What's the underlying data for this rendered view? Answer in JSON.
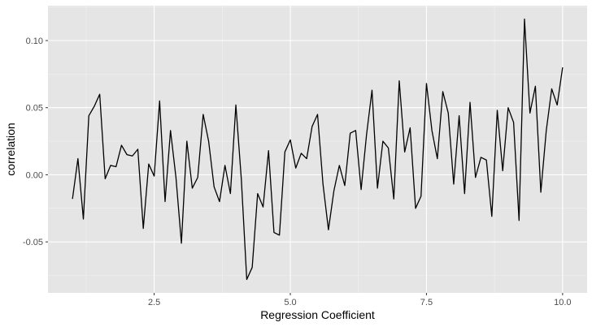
{
  "chart_data": {
    "type": "line",
    "title": "",
    "xlabel": "Regression Coefficient",
    "ylabel": "correlation",
    "xlim": [
      0.55,
      10.45
    ],
    "ylim": [
      -0.088,
      0.126
    ],
    "x_ticks": [
      2.5,
      5.0,
      7.5,
      10.0
    ],
    "x_tick_labels": [
      "2.5",
      "5.0",
      "7.5",
      "10.0"
    ],
    "y_ticks": [
      -0.05,
      0.0,
      0.05,
      0.1
    ],
    "y_tick_labels": [
      "-0.05",
      "0.00",
      "0.05",
      "0.10"
    ],
    "grid": true,
    "background": "#e5e5e5",
    "line_color": "#000000",
    "x": [
      1.0,
      1.1,
      1.2,
      1.3,
      1.4,
      1.5,
      1.6,
      1.7,
      1.8,
      1.9,
      2.0,
      2.1,
      2.2,
      2.3,
      2.4,
      2.5,
      2.6,
      2.7,
      2.8,
      2.9,
      3.0,
      3.1,
      3.2,
      3.3,
      3.4,
      3.5,
      3.6,
      3.7,
      3.8,
      3.9,
      4.0,
      4.1,
      4.2,
      4.3,
      4.4,
      4.5,
      4.6,
      4.7,
      4.8,
      4.9,
      5.0,
      5.1,
      5.2,
      5.3,
      5.4,
      5.5,
      5.6,
      5.7,
      5.8,
      5.9,
      6.0,
      6.1,
      6.2,
      6.3,
      6.4,
      6.5,
      6.6,
      6.7,
      6.8,
      6.9,
      7.0,
      7.1,
      7.2,
      7.3,
      7.4,
      7.5,
      7.6,
      7.7,
      7.8,
      7.9,
      8.0,
      8.1,
      8.2,
      8.3,
      8.4,
      8.5,
      8.6,
      8.7,
      8.8,
      8.9,
      9.0,
      9.1,
      9.2,
      9.3,
      9.4,
      9.5,
      9.6,
      9.7,
      9.8,
      9.9,
      10.0
    ],
    "series": [
      {
        "values": [
          -0.018,
          0.012,
          -0.033,
          0.044,
          0.051,
          0.06,
          -0.003,
          0.007,
          0.006,
          0.022,
          0.015,
          0.014,
          0.019,
          -0.04,
          0.008,
          -0.001,
          0.055,
          -0.02,
          0.033,
          -0.002,
          -0.051,
          0.025,
          -0.01,
          -0.002,
          0.045,
          0.025,
          -0.009,
          -0.02,
          0.007,
          -0.014,
          0.052,
          -0.003,
          -0.078,
          -0.069,
          -0.014,
          -0.024,
          0.018,
          -0.043,
          -0.045,
          0.017,
          0.026,
          0.005,
          0.016,
          0.012,
          0.036,
          0.045,
          -0.007,
          -0.041,
          -0.012,
          0.007,
          -0.008,
          0.031,
          0.033,
          -0.011,
          0.03,
          0.063,
          -0.01,
          0.025,
          0.02,
          -0.018,
          0.07,
          0.017,
          0.035,
          -0.025,
          -0.016,
          0.068,
          0.033,
          0.012,
          0.062,
          0.046,
          -0.007,
          0.044,
          -0.014,
          0.054,
          -0.002,
          0.013,
          0.011,
          -0.031,
          0.048,
          0.003,
          0.05,
          0.039,
          -0.034,
          0.116,
          0.046,
          0.066,
          -0.013,
          0.033,
          0.064,
          0.052,
          0.08
        ]
      }
    ]
  }
}
